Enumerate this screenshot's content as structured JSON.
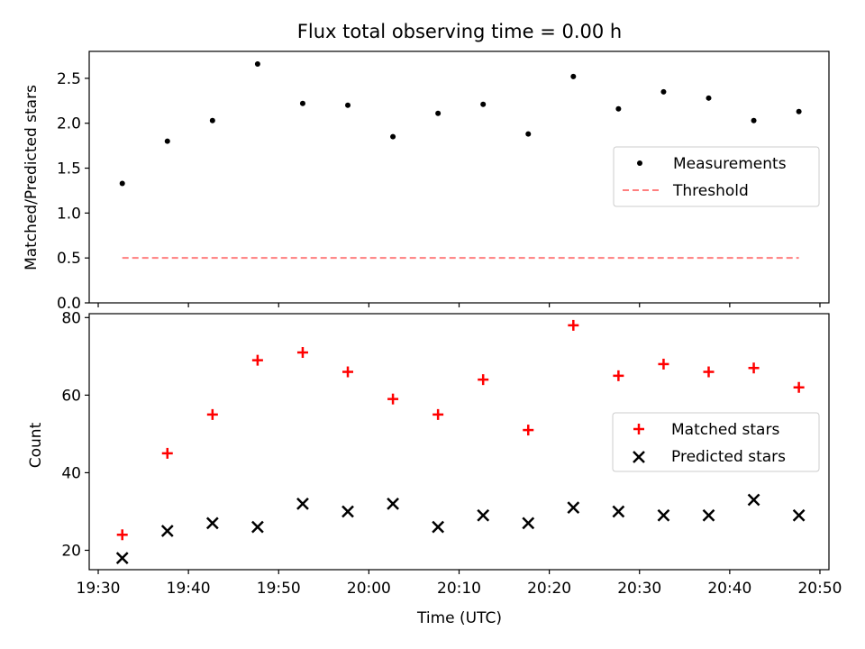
{
  "chart_data": [
    {
      "type": "scatter",
      "title": "Flux total observing time = 0.00 h",
      "xlabel": "",
      "ylabel": "Matched/Predicted stars",
      "xlim": [
        "19:29:00",
        "20:51:00"
      ],
      "ylim": [
        0,
        2.8
      ],
      "yticks": [
        0.0,
        0.5,
        1.0,
        1.5,
        2.0,
        2.5
      ],
      "ytick_labels": [
        "0.0",
        "0.5",
        "1.0",
        "1.5",
        "2.0",
        "2.5"
      ],
      "x": [
        "19:32:40",
        "19:37:40",
        "19:42:40",
        "19:47:40",
        "19:52:40",
        "19:57:40",
        "20:02:40",
        "20:07:40",
        "20:12:40",
        "20:17:40",
        "20:22:40",
        "20:27:40",
        "20:32:40",
        "20:37:40",
        "20:42:40",
        "20:47:40"
      ],
      "series": [
        {
          "name": "Measurements",
          "marker": "dot",
          "color": "#000000",
          "values": [
            1.33,
            1.8,
            2.03,
            2.66,
            2.22,
            2.2,
            1.85,
            2.11,
            2.21,
            1.88,
            2.52,
            2.16,
            2.35,
            2.28,
            2.03,
            2.13
          ]
        },
        {
          "name": "Threshold",
          "line": "dashed",
          "color": "#ff7f7f",
          "x": [
            "19:32:40",
            "20:47:40"
          ],
          "values": [
            0.5,
            0.5
          ]
        }
      ],
      "legend": "center-right",
      "grid": false
    },
    {
      "type": "scatter",
      "title": "",
      "xlabel": "Time (UTC)",
      "ylabel": "Count",
      "xlim": [
        "19:29:00",
        "20:51:00"
      ],
      "ylim": [
        15,
        81
      ],
      "yticks": [
        20,
        40,
        60,
        80
      ],
      "ytick_labels": [
        "20",
        "40",
        "60",
        "80"
      ],
      "xticks": [
        "19:30",
        "19:40",
        "19:50",
        "20:00",
        "20:10",
        "20:20",
        "20:30",
        "20:40",
        "20:50"
      ],
      "x": [
        "19:32:40",
        "19:37:40",
        "19:42:40",
        "19:47:40",
        "19:52:40",
        "19:57:40",
        "20:02:40",
        "20:07:40",
        "20:12:40",
        "20:17:40",
        "20:22:40",
        "20:27:40",
        "20:32:40",
        "20:37:40",
        "20:42:40",
        "20:47:40"
      ],
      "series": [
        {
          "name": "Matched stars",
          "marker": "plus",
          "color": "#ff0000",
          "values": [
            24,
            45,
            55,
            69,
            71,
            66,
            59,
            55,
            64,
            51,
            78,
            65,
            68,
            66,
            67,
            62
          ]
        },
        {
          "name": "Predicted stars",
          "marker": "x",
          "color": "#000000",
          "values": [
            18,
            25,
            27,
            26,
            32,
            30,
            32,
            26,
            29,
            27,
            31,
            30,
            29,
            29,
            33,
            29
          ]
        }
      ],
      "legend": "center-right",
      "grid": false
    }
  ]
}
